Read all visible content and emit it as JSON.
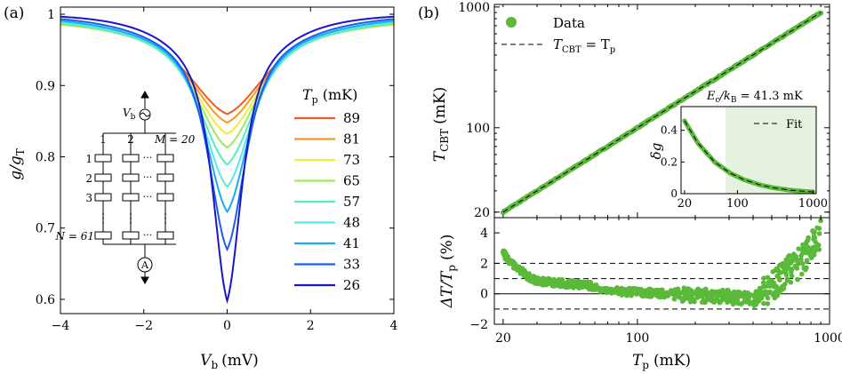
{
  "panel_a": {
    "label": "(a)",
    "xlabel": "V",
    "xlabel_sub": "b",
    "xlabel_unit": "(mV)",
    "ylabel": "g/g",
    "ylabel_sub": "T",
    "legend_title": "T",
    "legend_title_sub": "p",
    "legend_unit": "(mK)",
    "circuit": {
      "source_label": "V",
      "source_sub": "b",
      "col_labels": [
        "1",
        "2",
        "M = 20"
      ],
      "row_labels": [
        "1",
        "2",
        "3",
        "N = 61"
      ],
      "ammeter_label": "A"
    }
  },
  "panel_b": {
    "label": "(b)",
    "ylabel_main": "T",
    "ylabel_main_sub": "CBT",
    "ylabel_main_unit": "(mK)",
    "ylabel_bottom": "ΔT/T",
    "ylabel_bottom_sub": "p",
    "ylabel_bottom_unit": "(%)",
    "xlabel": "T",
    "xlabel_sub": "p",
    "xlabel_unit": "(mK)",
    "legend": [
      {
        "label": "Data"
      },
      {
        "label": "T",
        "sub": "CBT",
        "rest": " = T",
        "rest_sub": "p"
      }
    ],
    "inset_annotation": "E",
    "inset_annotation_sub1": "c",
    "inset_annotation_mid": "/k",
    "inset_annotation_sub2": "B",
    "inset_annotation_rest": " = 41.3 mK",
    "inset_legend": "Fit",
    "inset_ylabel": "δg"
  },
  "colors": {
    "green": "#5bb93a",
    "inset_shade": "#e6f2e0",
    "series": [
      "#f05a1e",
      "#f79a1c",
      "#ecef3c",
      "#a2e75e",
      "#57edb8",
      "#54e9ec",
      "#1aaaf0",
      "#1a5ff0",
      "#1a16c8"
    ]
  },
  "chart_data": [
    {
      "type": "line",
      "title": "",
      "xlabel": "Vb (mV)",
      "ylabel": "g/gT",
      "xlim": [
        -4,
        4
      ],
      "ylim": [
        0.58,
        1.01
      ],
      "xticks": [
        "-4",
        "-2",
        "0",
        "2",
        "4"
      ],
      "yticks": [
        "0.6",
        "0.7",
        "0.8",
        "0.9",
        "1"
      ],
      "legend_title": "Tp (mK)",
      "series": [
        {
          "name": "89",
          "min": 0.86,
          "width": 1.12
        },
        {
          "name": "81",
          "min": 0.848,
          "width": 1.06
        },
        {
          "name": "73",
          "min": 0.832,
          "width": 0.99
        },
        {
          "name": "65",
          "min": 0.813,
          "width": 0.91
        },
        {
          "name": "57",
          "min": 0.789,
          "width": 0.83
        },
        {
          "name": "48",
          "min": 0.758,
          "width": 0.73
        },
        {
          "name": "41",
          "min": 0.723,
          "width": 0.64
        },
        {
          "name": "33",
          "min": 0.67,
          "width": 0.54
        },
        {
          "name": "26",
          "min": 0.598,
          "width": 0.42
        }
      ]
    },
    {
      "type": "scatter",
      "title": "",
      "xlabel": "Tp (mK)",
      "ylabel": "TCBT (mK)",
      "xscale": "log",
      "yscale": "log",
      "xlim": [
        18,
        1000
      ],
      "ylim": [
        18,
        1050
      ],
      "yticks": [
        "20",
        "100",
        "1000"
      ],
      "series": [
        {
          "name": "Data",
          "x": [
            20,
            30,
            50,
            80,
            120,
            200,
            300,
            500,
            700,
            900
          ],
          "y": [
            20,
            30,
            50,
            80,
            120,
            200,
            300,
            500,
            700,
            900
          ]
        },
        {
          "name": "TCBT = Tp",
          "x": [
            20,
            900
          ],
          "y": [
            20,
            900
          ]
        }
      ]
    },
    {
      "type": "scatter",
      "title": "",
      "xlabel": "Tp (mK)",
      "ylabel": "ΔT/Tp (%)",
      "xscale": "log",
      "xlim": [
        18,
        1000
      ],
      "ylim": [
        -2,
        5
      ],
      "xticks": [
        "20",
        "100",
        "1000"
      ],
      "yticks": [
        "-2",
        "0",
        "2",
        "4"
      ],
      "reference_lines": [
        -1,
        0,
        1,
        2
      ],
      "series": [
        {
          "name": "Data",
          "x": [
            20,
            22,
            25,
            28,
            32,
            40,
            50,
            60,
            70,
            100,
            150,
            200,
            300,
            400,
            500,
            600,
            700,
            800,
            900
          ],
          "y": [
            2.7,
            2.0,
            1.5,
            1.0,
            0.8,
            0.7,
            0.6,
            0.5,
            0.2,
            0.1,
            0.0,
            -0.1,
            -0.2,
            -0.4,
            0.5,
            1.5,
            2.0,
            3.0,
            4.0
          ]
        }
      ]
    },
    {
      "type": "line",
      "title": "",
      "xlabel": "",
      "ylabel": "δg",
      "xscale": "log",
      "xlim": [
        18,
        1100
      ],
      "ylim": [
        0,
        0.55
      ],
      "xticks": [
        "20",
        "100",
        "1000"
      ],
      "yticks": [
        "0",
        "0.2",
        "0.4"
      ],
      "shaded_region_x": [
        70,
        1100
      ],
      "series": [
        {
          "name": "Data",
          "x": [
            20,
            30,
            50,
            80,
            120,
            200,
            300,
            500,
            800,
            1000
          ],
          "y": [
            0.46,
            0.32,
            0.2,
            0.13,
            0.09,
            0.055,
            0.037,
            0.022,
            0.014,
            0.011
          ]
        },
        {
          "name": "Fit",
          "x": [
            20,
            30,
            50,
            80,
            120,
            200,
            300,
            500,
            800,
            1000
          ],
          "y": [
            0.46,
            0.32,
            0.2,
            0.13,
            0.09,
            0.055,
            0.037,
            0.022,
            0.014,
            0.011
          ]
        }
      ]
    }
  ]
}
